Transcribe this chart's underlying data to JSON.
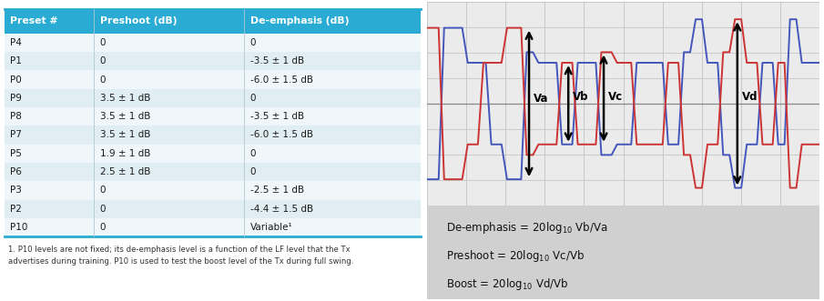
{
  "table_header": [
    "Preset #",
    "Preshoot (dB)",
    "De-emphasis (dB)"
  ],
  "table_rows": [
    [
      "P4",
      "0",
      "0"
    ],
    [
      "P1",
      "0",
      "-3.5 ± 1 dB"
    ],
    [
      "P0",
      "0",
      "-6.0 ± 1.5 dB"
    ],
    [
      "P9",
      "3.5 ± 1 dB",
      "0"
    ],
    [
      "P8",
      "3.5 ± 1 dB",
      "-3.5 ± 1 dB"
    ],
    [
      "P7",
      "3.5 ± 1 dB",
      "-6.0 ± 1.5 dB"
    ],
    [
      "P5",
      "1.9 ± 1 dB",
      "0"
    ],
    [
      "P6",
      "2.5 ± 1 dB",
      "0"
    ],
    [
      "P3",
      "0",
      "-2.5 ± 1 dB"
    ],
    [
      "P2",
      "0",
      "-4.4 ± 1.5 dB"
    ],
    [
      "P10",
      "0",
      "Variable¹"
    ]
  ],
  "footnote": "1. P10 levels are not fixed; its de-emphasis level is a function of the LF level that the Tx\nadvertises during training. P10 is used to test the boost level of the Tx during full swing.",
  "header_bg": "#29ABD4",
  "header_fg": "#ffffff",
  "row_bg_odd": "#f0f7fa",
  "row_bg_even": "#e0eef4",
  "table_border": "#29ABD4",
  "waveform_plot_bg": "#ebebeb",
  "grid_color": "#c8c8c8",
  "blue_line": "#4455bb",
  "red_line": "#cc3333",
  "formula_bg": "#d0d0d0",
  "Va": 1.15,
  "Vb": 0.62,
  "Vc": 0.78,
  "Vd": 1.28
}
